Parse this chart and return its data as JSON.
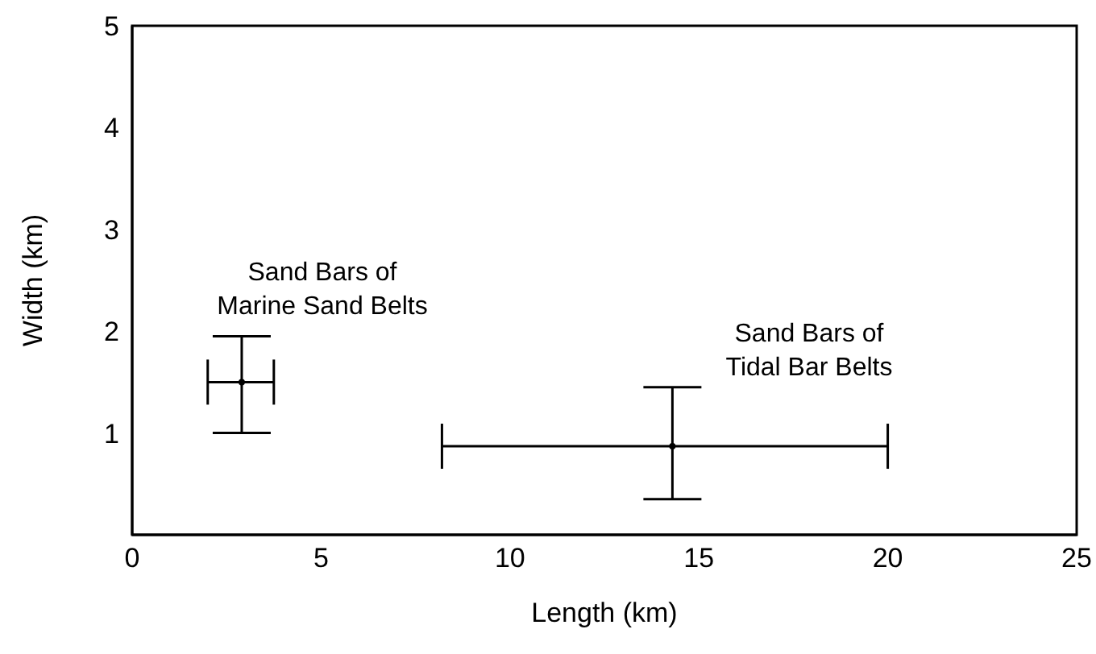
{
  "chart_data": {
    "type": "scatter",
    "xlabel": "Length (km)",
    "ylabel": "Width (km)",
    "xlim": [
      0,
      25
    ],
    "xticks": [
      0,
      5,
      10,
      15,
      20,
      25
    ],
    "ylim": [
      0,
      5
    ],
    "yticks": [
      1,
      2,
      3,
      4,
      5
    ],
    "marker": "circle",
    "series": [
      {
        "color": "#000000",
        "x": [
          2.9,
          14.3
        ],
        "values": [
          1.5,
          0.87
        ],
        "xerrors": [
          [
            2,
            3.75
          ],
          [
            8.2,
            20
          ]
        ],
        "errors": [
          [
            1,
            1.95
          ],
          [
            0.35,
            1.45
          ]
        ]
      }
    ],
    "annotations": [
      "Sand Bars of\nMarine Sand Belts",
      "Sand Bars of\nTidal Bar Belts"
    ]
  }
}
